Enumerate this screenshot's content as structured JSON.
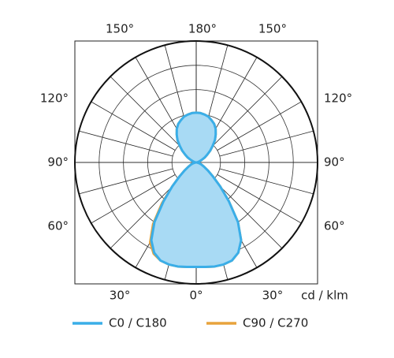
{
  "chart_data": {
    "type": "polar",
    "unit_label": "cd / klm",
    "rlim": [
      0,
      5
    ],
    "rticks": [
      1,
      2,
      3,
      4,
      5
    ],
    "angle_ticks": [
      {
        "value": -150,
        "label": "150°"
      },
      {
        "value": -120,
        "label": "120°"
      },
      {
        "value": -90,
        "label": "90°"
      },
      {
        "value": -60,
        "label": "60°"
      },
      {
        "value": -30,
        "label": "30°"
      },
      {
        "value": 0,
        "label": "0°"
      },
      {
        "value": 30,
        "label": "30°"
      },
      {
        "value": 60,
        "label": "60°"
      },
      {
        "value": 90,
        "label": "90°"
      },
      {
        "value": 120,
        "label": "120°"
      },
      {
        "value": 150,
        "label": "150°"
      },
      {
        "value": 180,
        "label": "180°"
      }
    ],
    "x": [
      -180,
      -175,
      -170,
      -165,
      -160,
      -155,
      -150,
      -145,
      -140,
      -135,
      -130,
      -125,
      -120,
      -115,
      -110,
      -105,
      -100,
      -95,
      -90,
      -85,
      -80,
      -75,
      -70,
      -65,
      -60,
      -55,
      -50,
      -45,
      -40,
      -35,
      -30,
      -25,
      -20,
      -15,
      -10,
      -5,
      0,
      5,
      10,
      15,
      20,
      25,
      30,
      35,
      40,
      45,
      50,
      55,
      60,
      65,
      70,
      75,
      80,
      85,
      90,
      95,
      100,
      105,
      110,
      115,
      120,
      125,
      130,
      135,
      140,
      145,
      150,
      155,
      160,
      165,
      170,
      175,
      180
    ],
    "series": [
      {
        "name": "C90 / C270",
        "color": "#e8a33d",
        "values": [
          2.05,
          2.04,
          2.0,
          1.95,
          1.85,
          1.75,
          1.6,
          1.4,
          1.2,
          0.95,
          0.75,
          0.55,
          0.4,
          0.25,
          0.15,
          0.1,
          0.05,
          0.02,
          0,
          0.02,
          0.05,
          0.12,
          0.2,
          0.28,
          0.4,
          0.6,
          0.9,
          1.4,
          2.2,
          3.1,
          3.8,
          4.15,
          4.3,
          4.35,
          4.35,
          4.32,
          4.3,
          4.32,
          4.35,
          4.35,
          4.3,
          4.1,
          3.7,
          3.0,
          2.1,
          1.4,
          0.9,
          0.6,
          0.4,
          0.28,
          0.2,
          0.12,
          0.05,
          0.02,
          0,
          0.02,
          0.05,
          0.1,
          0.15,
          0.25,
          0.4,
          0.55,
          0.75,
          0.95,
          1.2,
          1.4,
          1.6,
          1.75,
          1.85,
          1.95,
          2.0,
          2.04,
          2.05
        ]
      },
      {
        "name": "C0 / C180",
        "color": "#3aaee8",
        "fill": "#a8daf4",
        "values": [
          2.05,
          2.04,
          2.0,
          1.95,
          1.85,
          1.75,
          1.6,
          1.4,
          1.2,
          0.95,
          0.75,
          0.55,
          0.4,
          0.25,
          0.15,
          0.1,
          0.05,
          0.02,
          0,
          0.02,
          0.05,
          0.12,
          0.2,
          0.28,
          0.4,
          0.6,
          0.9,
          1.4,
          2.1,
          3.0,
          3.7,
          4.1,
          4.3,
          4.35,
          4.35,
          4.32,
          4.3,
          4.32,
          4.35,
          4.35,
          4.3,
          4.1,
          3.7,
          3.0,
          2.1,
          1.4,
          0.9,
          0.6,
          0.4,
          0.28,
          0.2,
          0.12,
          0.05,
          0.02,
          0,
          0.02,
          0.05,
          0.1,
          0.15,
          0.25,
          0.4,
          0.55,
          0.75,
          0.95,
          1.2,
          1.4,
          1.6,
          1.75,
          1.85,
          1.95,
          2.0,
          2.04,
          2.05
        ]
      }
    ],
    "legend_order": [
      1,
      0
    ]
  }
}
